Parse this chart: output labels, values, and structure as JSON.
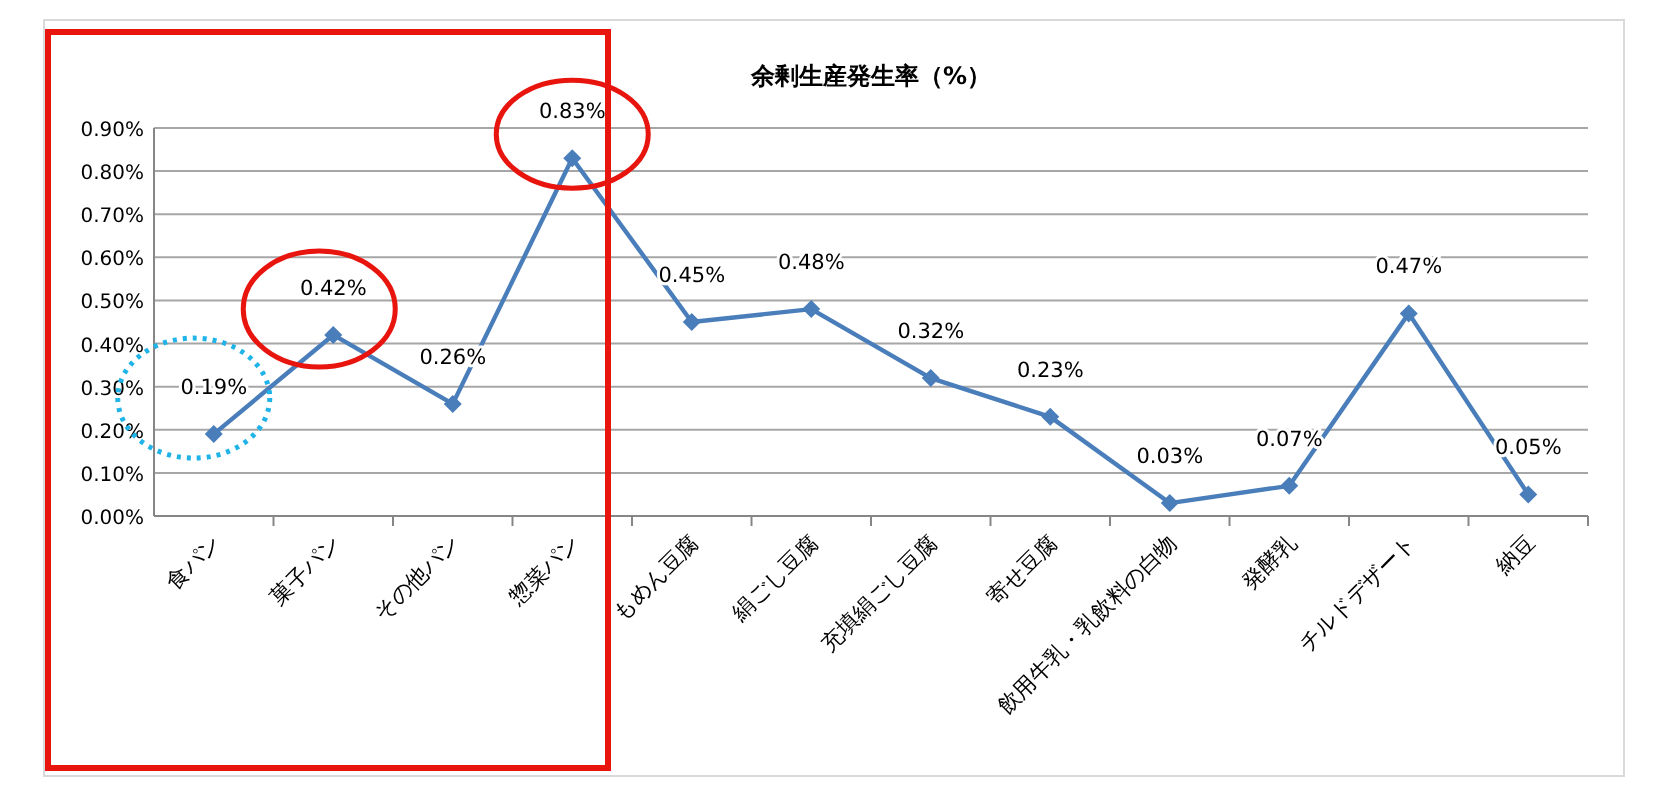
{
  "chart_data": {
    "type": "line",
    "title": "余剰生産発生率（%）",
    "categories": [
      "食パン",
      "菓子パン",
      "その他パン",
      "惣菜パン",
      "もめん豆腐",
      "絹ごし豆腐",
      "充填絹ごし豆腐",
      "寄せ豆腐",
      "飲用牛乳・乳飲料の白物",
      "発酵乳",
      "チルドデザート",
      "納豆"
    ],
    "series": [
      {
        "color": "#4a7ebb",
        "values": [
          0.19,
          0.42,
          0.26,
          0.83,
          0.45,
          0.48,
          0.32,
          0.23,
          0.03,
          0.07,
          0.47,
          0.05
        ],
        "value_labels": [
          "0.19%",
          "0.42%",
          "0.26%",
          "0.83%",
          "0.45%",
          "0.48%",
          "0.32%",
          "0.23%",
          "0.03%",
          "0.07%",
          "0.47%",
          "0.05%"
        ]
      }
    ],
    "ylim": [
      0,
      0.9
    ],
    "yticks": [
      {
        "value": 0,
        "label": "0.00%"
      },
      {
        "value": 0.1,
        "label": "0.10%"
      },
      {
        "value": 0.2,
        "label": "0.20%"
      },
      {
        "value": 0.3,
        "label": "0.30%"
      },
      {
        "value": 0.4,
        "label": "0.40%"
      },
      {
        "value": 0.5,
        "label": "0.50%"
      },
      {
        "value": 0.6,
        "label": "0.60%"
      },
      {
        "value": 0.7,
        "label": "0.70%"
      },
      {
        "value": 0.8,
        "label": "0.80%"
      },
      {
        "value": 0.9,
        "label": "0.90%"
      }
    ],
    "grid": "y",
    "marker": "diamond"
  }
}
